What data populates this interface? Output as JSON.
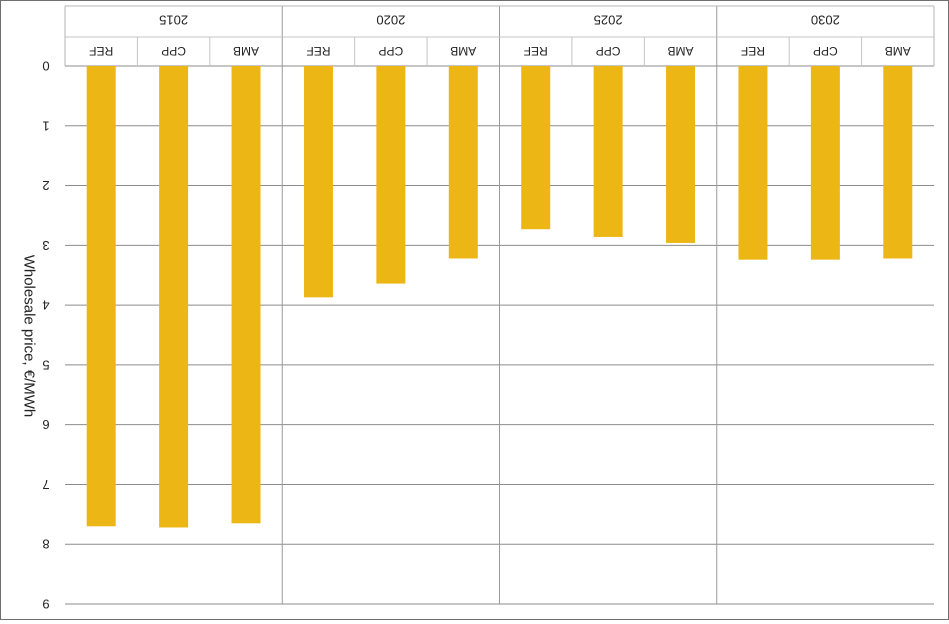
{
  "chart_data": {
    "type": "bar",
    "orientation": "vertical, rendered upside-down and mirrored",
    "ylabel": "Wholesale price, €/MWh",
    "ylim": [
      0,
      9
    ],
    "yticks": [
      "0",
      "1",
      "2",
      "3",
      "4",
      "5",
      "6",
      "7",
      "8",
      "9"
    ],
    "grid": true,
    "groups": [
      {
        "label": "2015",
        "categories": [
          "REF",
          "CPP",
          "AMB"
        ],
        "values": [
          7.7,
          7.72,
          7.65
        ]
      },
      {
        "label": "2020",
        "categories": [
          "REF",
          "CPP",
          "AMB"
        ],
        "values": [
          3.87,
          3.64,
          3.22
        ]
      },
      {
        "label": "2025",
        "categories": [
          "REF",
          "CPP",
          "AMB"
        ],
        "values": [
          2.73,
          2.86,
          2.96
        ]
      },
      {
        "label": "2030",
        "categories": [
          "REF",
          "CPP",
          "AMB"
        ],
        "values": [
          3.24,
          3.24,
          3.22
        ]
      }
    ],
    "bar_color": "#ecb714",
    "grid_color": "#8c8c8c"
  }
}
